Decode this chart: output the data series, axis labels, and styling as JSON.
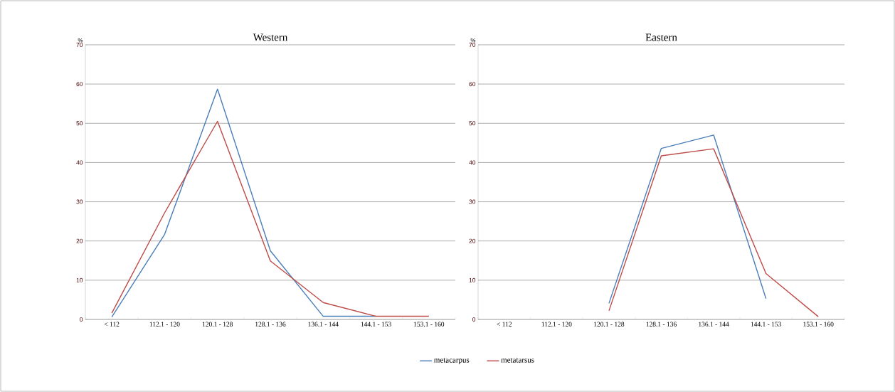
{
  "chart_data": [
    {
      "type": "line",
      "title": "Western",
      "ylabel": "%",
      "categories": [
        "< 112",
        "112.1 - 120",
        "120.1 - 128",
        "128.1 - 136",
        "136.1 - 144",
        "144.1 - 153",
        "153.1 - 160"
      ],
      "ylim": [
        0,
        70
      ],
      "yticks": [
        0,
        10,
        20,
        30,
        40,
        50,
        60,
        70
      ],
      "grid": "y",
      "legend": "bottom",
      "marker": "none",
      "series": [
        {
          "name": "metacarpus",
          "color": "#4a7ebb",
          "values": [
            0.6,
            21.7,
            58.7,
            17.5,
            0.8,
            0.8,
            null
          ]
        },
        {
          "name": "metatarsus",
          "color": "#be4b48",
          "values": [
            1.6,
            27.2,
            50.5,
            14.9,
            4.3,
            0.8,
            0.8
          ]
        }
      ]
    },
    {
      "type": "line",
      "title": "Eastern",
      "ylabel": "%",
      "categories": [
        "< 112",
        "112.1 - 120",
        "120.1 - 128",
        "128.1 - 136",
        "136.1 - 144",
        "144.1 - 153",
        "153.1 - 160"
      ],
      "ylim": [
        0,
        70
      ],
      "yticks": [
        0,
        10,
        20,
        30,
        40,
        50,
        60,
        70
      ],
      "grid": "y",
      "marker": "none",
      "series": [
        {
          "color": "#4a7ebb",
          "values": [
            null,
            null,
            4.1,
            43.6,
            47.0,
            5.3,
            null
          ]
        },
        {
          "color": "#be4b48",
          "values": [
            null,
            null,
            2.2,
            41.7,
            43.5,
            11.7,
            0.7
          ]
        }
      ]
    }
  ]
}
